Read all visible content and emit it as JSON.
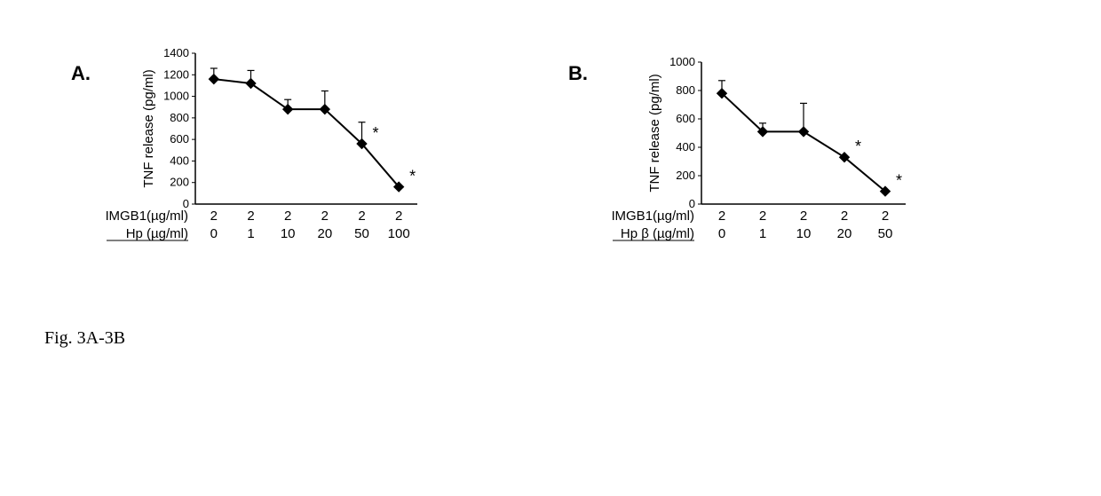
{
  "caption": "Fig. 3A-3B",
  "panelA": {
    "label": "A.",
    "type": "line",
    "ylabel": "TNF release  (pg/ml)",
    "ylim": [
      0,
      1400
    ],
    "ytick_step": 200,
    "yticks": [
      0,
      200,
      400,
      600,
      800,
      1000,
      1200,
      1400
    ],
    "series": {
      "x": [
        0,
        1,
        2,
        3,
        4,
        5
      ],
      "y": [
        1160,
        1120,
        880,
        880,
        560,
        160
      ],
      "err": [
        100,
        120,
        90,
        170,
        200,
        0
      ],
      "sig": [
        false,
        false,
        false,
        false,
        true,
        true
      ]
    },
    "xtable": {
      "rows": [
        {
          "label": "HMGB1(µg/ml)",
          "vals": [
            "2",
            "2",
            "2",
            "2",
            "2",
            "2"
          ]
        },
        {
          "label": "Hp (µg/ml)",
          "vals": [
            "0",
            "1",
            "10",
            "20",
            "50",
            "100"
          ]
        }
      ]
    },
    "colors": {
      "line": "#000000",
      "marker_fill": "#000000",
      "axis": "#000000",
      "text": "#000000",
      "bg": "#ffffff"
    },
    "marker": "diamond",
    "marker_size": 7,
    "line_width": 2,
    "label_fontsize": 15,
    "tick_fontsize": 13,
    "table_fontsize": 15
  },
  "panelB": {
    "label": "B.",
    "type": "line",
    "ylabel": "TNF release (pg/ml)",
    "ylim": [
      0,
      1000
    ],
    "ytick_step": 200,
    "yticks": [
      0,
      200,
      400,
      600,
      800,
      1000
    ],
    "series": {
      "x": [
        0,
        1,
        2,
        3,
        4
      ],
      "y": [
        780,
        510,
        510,
        330,
        90
      ],
      "err": [
        90,
        60,
        200,
        0,
        0
      ],
      "sig": [
        false,
        false,
        false,
        true,
        true
      ]
    },
    "xtable": {
      "rows": [
        {
          "label": "HMGB1(µg/ml)",
          "vals": [
            "2",
            "2",
            "2",
            "2",
            "2"
          ]
        },
        {
          "label": "Hp β (µg/ml)",
          "vals": [
            "0",
            "1",
            "10",
            "20",
            "50"
          ]
        }
      ]
    },
    "colors": {
      "line": "#000000",
      "marker_fill": "#000000",
      "axis": "#000000",
      "text": "#000000",
      "bg": "#ffffff"
    },
    "marker": "diamond",
    "marker_size": 7,
    "line_width": 2,
    "label_fontsize": 15,
    "tick_fontsize": 13,
    "table_fontsize": 15
  }
}
